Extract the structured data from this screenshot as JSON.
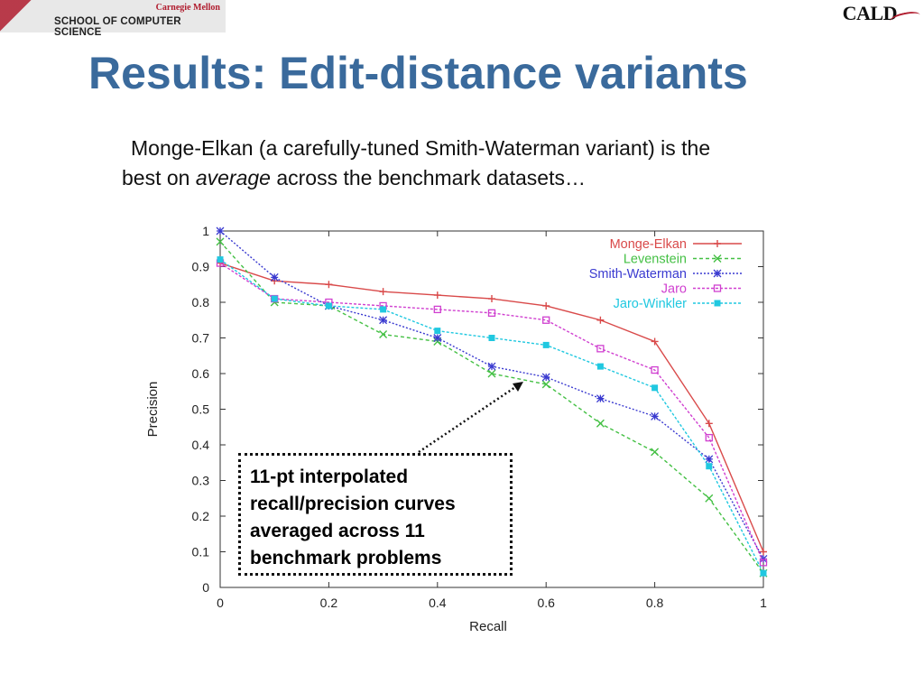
{
  "header": {
    "school_top": "Carnegie Mellon",
    "school_name": "SCHOOL OF COMPUTER SCIENCE",
    "logo_text": "CALD"
  },
  "slide": {
    "title": "Results: Edit-distance variants",
    "body_line1": "Monge-Elkan (a carefully-tuned Smith-Waterman variant) is the",
    "body_line2_pre": "best on ",
    "body_line2_em": "average",
    "body_line2_post": " across the benchmark datasets…",
    "annotation": "11-pt interpolated recall/precision curves averaged across 11 benchmark problems"
  },
  "chart_data": {
    "type": "line",
    "xlabel": "Recall",
    "ylabel": "Precision",
    "xlim": [
      0,
      1
    ],
    "ylim": [
      0,
      1
    ],
    "x_ticks": [
      "0",
      "0.2",
      "0.4",
      "0.6",
      "0.8",
      "1"
    ],
    "y_ticks": [
      "0",
      "0.1",
      "0.2",
      "0.3",
      "0.4",
      "0.5",
      "0.6",
      "0.7",
      "0.8",
      "0.9",
      "1"
    ],
    "x": [
      0,
      0.1,
      0.2,
      0.3,
      0.4,
      0.5,
      0.6,
      0.7,
      0.8,
      0.9,
      1.0
    ],
    "legend_position": "top-right",
    "grid": false,
    "series": [
      {
        "name": "Monge-Elkan",
        "color": "#d94a4a",
        "dash": "",
        "marker": "plus",
        "values": [
          0.91,
          0.86,
          0.85,
          0.83,
          0.82,
          0.81,
          0.79,
          0.75,
          0.69,
          0.46,
          0.1
        ]
      },
      {
        "name": "Levenstein",
        "color": "#44c044",
        "dash": "4,3",
        "marker": "x",
        "values": [
          0.97,
          0.8,
          0.79,
          0.71,
          0.69,
          0.6,
          0.57,
          0.46,
          0.38,
          0.25,
          0.04
        ]
      },
      {
        "name": "Smith-Waterman",
        "color": "#3a3ad0",
        "dash": "2,2",
        "marker": "star",
        "values": [
          1.0,
          0.87,
          0.79,
          0.75,
          0.7,
          0.62,
          0.59,
          0.53,
          0.48,
          0.36,
          0.08
        ]
      },
      {
        "name": "Jaro",
        "color": "#d040d0",
        "dash": "3,2",
        "marker": "square",
        "values": [
          0.91,
          0.81,
          0.8,
          0.79,
          0.78,
          0.77,
          0.75,
          0.67,
          0.61,
          0.42,
          0.07
        ]
      },
      {
        "name": "Jaro-Winkler",
        "color": "#20c8e0",
        "dash": "3,2",
        "marker": "filled-square",
        "values": [
          0.92,
          0.81,
          0.79,
          0.78,
          0.72,
          0.7,
          0.68,
          0.62,
          0.56,
          0.34,
          0.04
        ]
      }
    ]
  }
}
